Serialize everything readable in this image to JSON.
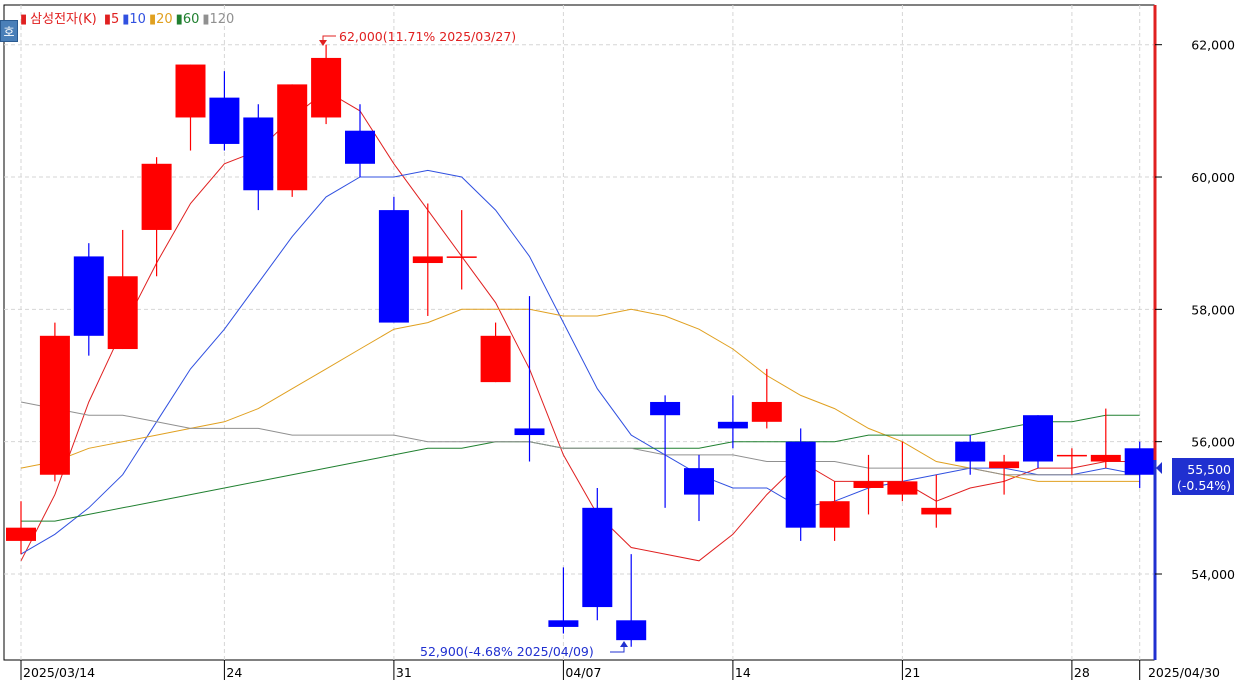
{
  "legend": {
    "title": "삼성전자(K)",
    "items": [
      {
        "label": "5",
        "color": "#e02020"
      },
      {
        "label": "10",
        "color": "#3050e0"
      },
      {
        "label": "20",
        "color": "#e0a020"
      },
      {
        "label": "60",
        "color": "#208030"
      },
      {
        "label": "120",
        "color": "#909090"
      }
    ]
  },
  "corner_button": "호",
  "annotations": {
    "high": "62,000(11.71% 2025/03/27)",
    "low": "52,900(-4.68% 2025/04/09)",
    "last_price": "55,500",
    "last_change": "(-0.54%)"
  },
  "colors": {
    "up": "#ff0000",
    "down": "#0000ff"
  },
  "chart_data": {
    "type": "candlestick",
    "title": "삼성전자(K)",
    "ylim": [
      52700,
      62600
    ],
    "y_ticks": [
      54000,
      56000,
      58000,
      60000,
      62000
    ],
    "y_tick_labels": [
      "54,000",
      "56,000",
      "58,000",
      "60,000",
      "62,000"
    ],
    "x_tick_labels": [
      {
        "index": 0,
        "label": "2025/03/14"
      },
      {
        "index": 6,
        "label": "24"
      },
      {
        "index": 11,
        "label": "31"
      },
      {
        "index": 16,
        "label": "04/07"
      },
      {
        "index": 21,
        "label": "14"
      },
      {
        "index": 26,
        "label": "21"
      },
      {
        "index": 31,
        "label": "28"
      },
      {
        "index": 33,
        "label": "2025/04/30"
      }
    ],
    "candles": [
      {
        "o": 54500,
        "h": 55100,
        "l": 54300,
        "c": 54700
      },
      {
        "o": 55500,
        "h": 57800,
        "l": 55400,
        "c": 57600
      },
      {
        "o": 58800,
        "h": 59000,
        "l": 57300,
        "c": 57600
      },
      {
        "o": 57400,
        "h": 59200,
        "l": 57400,
        "c": 58500
      },
      {
        "o": 59200,
        "h": 60300,
        "l": 58500,
        "c": 60200
      },
      {
        "o": 60900,
        "h": 61700,
        "l": 60400,
        "c": 61700
      },
      {
        "o": 61200,
        "h": 61600,
        "l": 60400,
        "c": 60500
      },
      {
        "o": 60900,
        "h": 61100,
        "l": 59500,
        "c": 59800
      },
      {
        "o": 59800,
        "h": 61400,
        "l": 59700,
        "c": 61400
      },
      {
        "o": 60900,
        "h": 62000,
        "l": 60800,
        "c": 61800
      },
      {
        "o": 60700,
        "h": 61100,
        "l": 60000,
        "c": 60200
      },
      {
        "o": 59500,
        "h": 59700,
        "l": 57800,
        "c": 57800
      },
      {
        "o": 58700,
        "h": 59600,
        "l": 57900,
        "c": 58800
      },
      {
        "o": 58800,
        "h": 59500,
        "l": 58300,
        "c": 58800
      },
      {
        "o": 56900,
        "h": 57800,
        "l": 56900,
        "c": 57600
      },
      {
        "o": 56200,
        "h": 58200,
        "l": 55700,
        "c": 56100
      },
      {
        "o": 53300,
        "h": 54100,
        "l": 53100,
        "c": 53200
      },
      {
        "o": 55000,
        "h": 55300,
        "l": 53300,
        "c": 53500
      },
      {
        "o": 53300,
        "h": 54300,
        "l": 52900,
        "c": 53000
      },
      {
        "o": 56600,
        "h": 56700,
        "l": 55000,
        "c": 56400
      },
      {
        "o": 55600,
        "h": 55800,
        "l": 54800,
        "c": 55200
      },
      {
        "o": 56300,
        "h": 56700,
        "l": 55900,
        "c": 56200
      },
      {
        "o": 56300,
        "h": 57100,
        "l": 56200,
        "c": 56600
      },
      {
        "o": 56000,
        "h": 56200,
        "l": 54500,
        "c": 54700
      },
      {
        "o": 54700,
        "h": 55400,
        "l": 54500,
        "c": 55100
      },
      {
        "o": 55300,
        "h": 55800,
        "l": 54900,
        "c": 55400
      },
      {
        "o": 55200,
        "h": 56000,
        "l": 55100,
        "c": 55400
      },
      {
        "o": 54900,
        "h": 55500,
        "l": 54700,
        "c": 55000
      },
      {
        "o": 56000,
        "h": 56100,
        "l": 55500,
        "c": 55700
      },
      {
        "o": 55600,
        "h": 55800,
        "l": 55200,
        "c": 55700
      },
      {
        "o": 56400,
        "h": 56400,
        "l": 55600,
        "c": 55700
      },
      {
        "o": 55800,
        "h": 55900,
        "l": 55500,
        "c": 55800
      },
      {
        "o": 55700,
        "h": 56500,
        "l": 55600,
        "c": 55800
      },
      {
        "o": 55900,
        "h": 56000,
        "l": 55300,
        "c": 55500
      }
    ],
    "series": [
      {
        "name": "5",
        "color": "#e02020",
        "values": [
          54200,
          55200,
          56600,
          57700,
          58700,
          59600,
          60200,
          60400,
          60900,
          61300,
          61000,
          60200,
          59500,
          58800,
          58100,
          57100,
          55800,
          54900,
          54400,
          54300,
          54200,
          54600,
          55200,
          55700,
          55400,
          55400,
          55400,
          55100,
          55300,
          55400,
          55600,
          55600,
          55700,
          55700
        ]
      },
      {
        "name": "10",
        "color": "#3050e0",
        "values": [
          54300,
          54600,
          55000,
          55500,
          56300,
          57100,
          57700,
          58400,
          59100,
          59700,
          60000,
          60000,
          60100,
          60000,
          59500,
          58800,
          57800,
          56800,
          56100,
          55800,
          55500,
          55300,
          55300,
          55000,
          55100,
          55300,
          55400,
          55500,
          55600,
          55600,
          55500,
          55500,
          55600,
          55500
        ]
      },
      {
        "name": "20",
        "color": "#e0a020",
        "values": [
          55600,
          55700,
          55900,
          56000,
          56100,
          56200,
          56300,
          56500,
          56800,
          57100,
          57400,
          57700,
          57800,
          58000,
          58000,
          58000,
          57900,
          57900,
          58000,
          57900,
          57700,
          57400,
          57000,
          56700,
          56500,
          56200,
          56000,
          55700,
          55600,
          55500,
          55400,
          55400,
          55400,
          55400
        ]
      },
      {
        "name": "60",
        "color": "#208030",
        "values": [
          54800,
          54800,
          54900,
          55000,
          55100,
          55200,
          55300,
          55400,
          55500,
          55600,
          55700,
          55800,
          55900,
          55900,
          56000,
          56000,
          55900,
          55900,
          55900,
          55900,
          55900,
          56000,
          56000,
          56000,
          56000,
          56100,
          56100,
          56100,
          56100,
          56200,
          56300,
          56300,
          56400,
          56400
        ]
      },
      {
        "name": "120",
        "color": "#909090",
        "values": [
          56600,
          56500,
          56400,
          56400,
          56300,
          56200,
          56200,
          56200,
          56100,
          56100,
          56100,
          56100,
          56000,
          56000,
          56000,
          56000,
          55900,
          55900,
          55900,
          55800,
          55800,
          55800,
          55700,
          55700,
          55700,
          55600,
          55600,
          55600,
          55600,
          55500,
          55500,
          55500,
          55500,
          55500
        ]
      }
    ]
  }
}
